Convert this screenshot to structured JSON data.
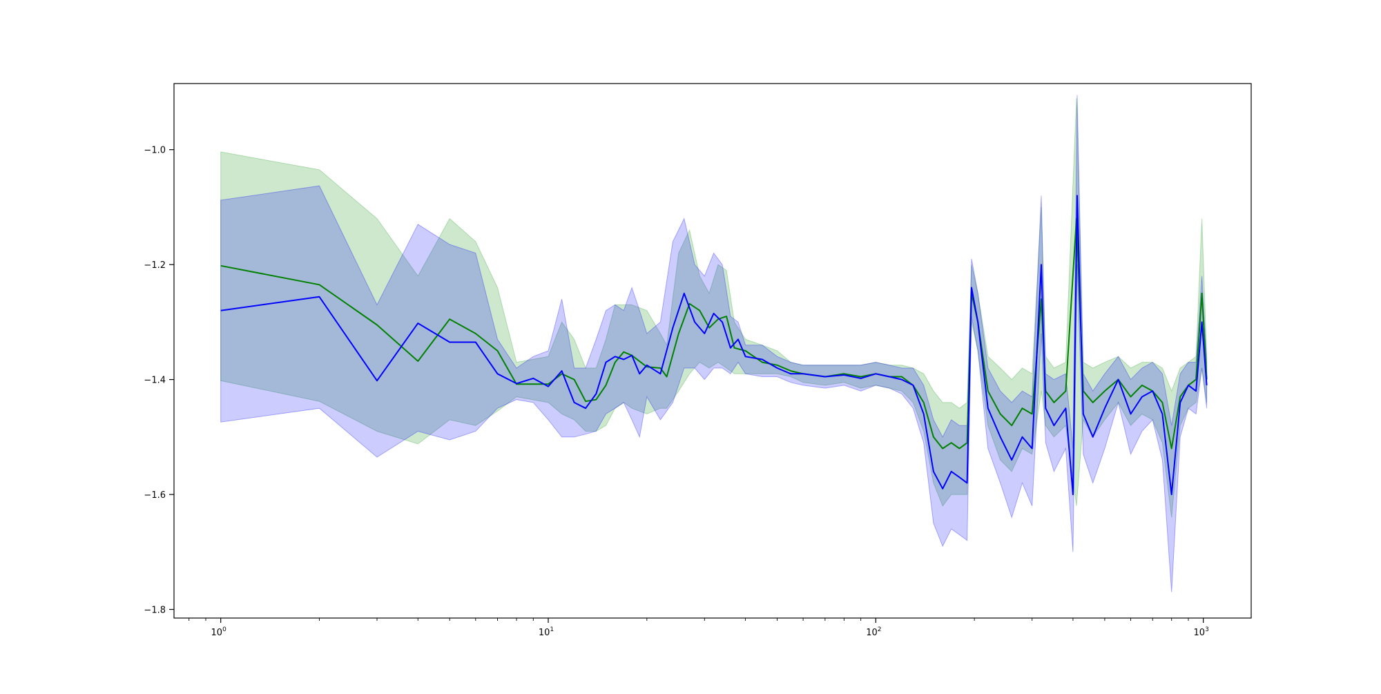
{
  "chart_data": {
    "type": "line",
    "title": "",
    "xlabel": "",
    "ylabel": "",
    "x_scale": "log",
    "xlim": [
      0.72,
      1400
    ],
    "ylim": [
      -1.815,
      -0.885
    ],
    "grid": false,
    "legend": "none",
    "x_ticks": [
      {
        "value": 1,
        "base": "10",
        "exp": "0"
      },
      {
        "value": 10,
        "base": "10",
        "exp": "1"
      },
      {
        "value": 100,
        "base": "10",
        "exp": "2"
      },
      {
        "value": 1000,
        "base": "10",
        "exp": "3"
      }
    ],
    "y_ticks": [
      {
        "value": -1.0,
        "label": "−1.0"
      },
      {
        "value": -1.2,
        "label": "−1.2"
      },
      {
        "value": -1.4,
        "label": "−1.4"
      },
      {
        "value": -1.6,
        "label": "−1.6"
      },
      {
        "value": -1.8,
        "label": "−1.8"
      }
    ],
    "series": [
      {
        "color": "#008000",
        "band_color": "#2ca02c",
        "points": [
          [
            1,
            -1.202,
            -1.004,
            -1.402
          ],
          [
            2,
            -1.235,
            -1.035,
            -1.438
          ],
          [
            3,
            -1.305,
            -1.12,
            -1.49
          ],
          [
            4,
            -1.368,
            -1.22,
            -1.512
          ],
          [
            5,
            -1.295,
            -1.12,
            -1.47
          ],
          [
            6,
            -1.32,
            -1.16,
            -1.48
          ],
          [
            7,
            -1.35,
            -1.24,
            -1.455
          ],
          [
            8,
            -1.408,
            -1.37,
            -1.43
          ],
          [
            10,
            -1.408,
            -1.36,
            -1.44
          ],
          [
            11,
            -1.39,
            -1.3,
            -1.46
          ],
          [
            12,
            -1.4,
            -1.33,
            -1.47
          ],
          [
            13,
            -1.438,
            -1.38,
            -1.49
          ],
          [
            14,
            -1.435,
            -1.38,
            -1.49
          ],
          [
            15,
            -1.41,
            -1.33,
            -1.48
          ],
          [
            16,
            -1.37,
            -1.27,
            -1.45
          ],
          [
            17,
            -1.352,
            -1.27,
            -1.44
          ],
          [
            18,
            -1.358,
            -1.27,
            -1.45
          ],
          [
            20,
            -1.378,
            -1.28,
            -1.46
          ],
          [
            22,
            -1.38,
            -1.32,
            -1.45
          ],
          [
            23,
            -1.395,
            -1.34,
            -1.45
          ],
          [
            25,
            -1.32,
            -1.18,
            -1.42
          ],
          [
            27,
            -1.268,
            -1.14,
            -1.39
          ],
          [
            29,
            -1.28,
            -1.22,
            -1.37
          ],
          [
            31,
            -1.31,
            -1.25,
            -1.38
          ],
          [
            33,
            -1.295,
            -1.2,
            -1.37
          ],
          [
            35,
            -1.29,
            -1.21,
            -1.38
          ],
          [
            37,
            -1.345,
            -1.3,
            -1.39
          ],
          [
            40,
            -1.35,
            -1.33,
            -1.39
          ],
          [
            45,
            -1.37,
            -1.34,
            -1.39
          ],
          [
            50,
            -1.375,
            -1.35,
            -1.39
          ],
          [
            55,
            -1.385,
            -1.37,
            -1.395
          ],
          [
            60,
            -1.39,
            -1.375,
            -1.405
          ],
          [
            70,
            -1.395,
            -1.375,
            -1.41
          ],
          [
            80,
            -1.39,
            -1.375,
            -1.405
          ],
          [
            90,
            -1.395,
            -1.375,
            -1.415
          ],
          [
            100,
            -1.39,
            -1.37,
            -1.41
          ],
          [
            110,
            -1.395,
            -1.375,
            -1.415
          ],
          [
            120,
            -1.395,
            -1.375,
            -1.42
          ],
          [
            130,
            -1.41,
            -1.38,
            -1.44
          ],
          [
            140,
            -1.44,
            -1.39,
            -1.49
          ],
          [
            150,
            -1.5,
            -1.42,
            -1.58
          ],
          [
            160,
            -1.52,
            -1.44,
            -1.62
          ],
          [
            170,
            -1.51,
            -1.44,
            -1.6
          ],
          [
            180,
            -1.52,
            -1.45,
            -1.6
          ],
          [
            190,
            -1.51,
            -1.44,
            -1.6
          ],
          [
            196,
            -1.25,
            -1.2,
            -1.3
          ],
          [
            205,
            -1.3,
            -1.25,
            -1.35
          ],
          [
            220,
            -1.42,
            -1.36,
            -1.48
          ],
          [
            240,
            -1.46,
            -1.38,
            -1.54
          ],
          [
            260,
            -1.48,
            -1.4,
            -1.56
          ],
          [
            280,
            -1.45,
            -1.38,
            -1.52
          ],
          [
            300,
            -1.46,
            -1.39,
            -1.53
          ],
          [
            320,
            -1.26,
            -1.1,
            -1.42
          ],
          [
            330,
            -1.42,
            -1.36,
            -1.48
          ],
          [
            350,
            -1.44,
            -1.38,
            -1.5
          ],
          [
            380,
            -1.42,
            -1.37,
            -1.48
          ],
          [
            410,
            -1.12,
            -0.91,
            -1.62
          ],
          [
            430,
            -1.42,
            -1.37,
            -1.47
          ],
          [
            460,
            -1.44,
            -1.38,
            -1.5
          ],
          [
            500,
            -1.42,
            -1.37,
            -1.47
          ],
          [
            550,
            -1.4,
            -1.36,
            -1.44
          ],
          [
            600,
            -1.43,
            -1.38,
            -1.48
          ],
          [
            650,
            -1.41,
            -1.37,
            -1.46
          ],
          [
            700,
            -1.42,
            -1.37,
            -1.47
          ],
          [
            750,
            -1.44,
            -1.38,
            -1.51
          ],
          [
            800,
            -1.52,
            -1.42,
            -1.64
          ],
          [
            850,
            -1.43,
            -1.38,
            -1.48
          ],
          [
            900,
            -1.41,
            -1.37,
            -1.45
          ],
          [
            950,
            -1.4,
            -1.36,
            -1.44
          ],
          [
            990,
            -1.25,
            -1.12,
            -1.38
          ],
          [
            1024,
            -1.4,
            -1.36,
            -1.44
          ]
        ]
      },
      {
        "color": "#0000ff",
        "band_color": "#0000ff",
        "points": [
          [
            1,
            -1.28,
            -1.088,
            -1.474
          ],
          [
            2,
            -1.256,
            -1.063,
            -1.45
          ],
          [
            3,
            -1.402,
            -1.27,
            -1.535
          ],
          [
            4,
            -1.302,
            -1.13,
            -1.49
          ],
          [
            5,
            -1.335,
            -1.165,
            -1.505
          ],
          [
            6,
            -1.335,
            -1.18,
            -1.49
          ],
          [
            7,
            -1.39,
            -1.33,
            -1.45
          ],
          [
            8,
            -1.407,
            -1.38,
            -1.435
          ],
          [
            9,
            -1.398,
            -1.36,
            -1.44
          ],
          [
            10,
            -1.412,
            -1.35,
            -1.47
          ],
          [
            11,
            -1.385,
            -1.26,
            -1.5
          ],
          [
            12,
            -1.44,
            -1.38,
            -1.5
          ],
          [
            13,
            -1.45,
            -1.38,
            -1.495
          ],
          [
            14,
            -1.425,
            -1.33,
            -1.49
          ],
          [
            15,
            -1.37,
            -1.28,
            -1.46
          ],
          [
            16,
            -1.36,
            -1.27,
            -1.45
          ],
          [
            17,
            -1.365,
            -1.28,
            -1.44
          ],
          [
            18,
            -1.358,
            -1.24,
            -1.47
          ],
          [
            19,
            -1.39,
            -1.28,
            -1.5
          ],
          [
            20,
            -1.375,
            -1.32,
            -1.43
          ],
          [
            22,
            -1.39,
            -1.3,
            -1.47
          ],
          [
            24,
            -1.31,
            -1.16,
            -1.44
          ],
          [
            26,
            -1.25,
            -1.12,
            -1.38
          ],
          [
            28,
            -1.3,
            -1.2,
            -1.38
          ],
          [
            30,
            -1.32,
            -1.22,
            -1.4
          ],
          [
            32,
            -1.285,
            -1.18,
            -1.38
          ],
          [
            34,
            -1.3,
            -1.2,
            -1.38
          ],
          [
            36,
            -1.345,
            -1.29,
            -1.39
          ],
          [
            38,
            -1.33,
            -1.3,
            -1.37
          ],
          [
            40,
            -1.36,
            -1.34,
            -1.39
          ],
          [
            45,
            -1.365,
            -1.34,
            -1.395
          ],
          [
            50,
            -1.38,
            -1.36,
            -1.395
          ],
          [
            55,
            -1.39,
            -1.37,
            -1.405
          ],
          [
            60,
            -1.39,
            -1.375,
            -1.41
          ],
          [
            70,
            -1.395,
            -1.375,
            -1.415
          ],
          [
            80,
            -1.392,
            -1.375,
            -1.41
          ],
          [
            90,
            -1.398,
            -1.375,
            -1.42
          ],
          [
            100,
            -1.39,
            -1.37,
            -1.41
          ],
          [
            110,
            -1.395,
            -1.375,
            -1.415
          ],
          [
            120,
            -1.4,
            -1.38,
            -1.425
          ],
          [
            130,
            -1.41,
            -1.38,
            -1.45
          ],
          [
            140,
            -1.46,
            -1.41,
            -1.51
          ],
          [
            150,
            -1.56,
            -1.47,
            -1.65
          ],
          [
            160,
            -1.59,
            -1.5,
            -1.69
          ],
          [
            170,
            -1.56,
            -1.47,
            -1.66
          ],
          [
            180,
            -1.57,
            -1.48,
            -1.67
          ],
          [
            190,
            -1.58,
            -1.48,
            -1.68
          ],
          [
            196,
            -1.24,
            -1.19,
            -1.29
          ],
          [
            205,
            -1.3,
            -1.25,
            -1.35
          ],
          [
            220,
            -1.45,
            -1.38,
            -1.52
          ],
          [
            240,
            -1.5,
            -1.42,
            -1.58
          ],
          [
            260,
            -1.54,
            -1.44,
            -1.64
          ],
          [
            280,
            -1.5,
            -1.42,
            -1.58
          ],
          [
            300,
            -1.52,
            -1.43,
            -1.62
          ],
          [
            320,
            -1.2,
            -1.08,
            -1.32
          ],
          [
            330,
            -1.45,
            -1.39,
            -1.51
          ],
          [
            350,
            -1.48,
            -1.4,
            -1.56
          ],
          [
            380,
            -1.45,
            -1.39,
            -1.52
          ],
          [
            400,
            -1.6,
            -1.52,
            -1.7
          ],
          [
            412,
            -1.08,
            -0.905,
            -1.2
          ],
          [
            430,
            -1.46,
            -1.39,
            -1.53
          ],
          [
            460,
            -1.5,
            -1.42,
            -1.58
          ],
          [
            500,
            -1.45,
            -1.39,
            -1.52
          ],
          [
            550,
            -1.4,
            -1.36,
            -1.44
          ],
          [
            600,
            -1.46,
            -1.4,
            -1.53
          ],
          [
            650,
            -1.43,
            -1.38,
            -1.49
          ],
          [
            700,
            -1.42,
            -1.37,
            -1.47
          ],
          [
            750,
            -1.46,
            -1.39,
            -1.54
          ],
          [
            800,
            -1.6,
            -1.48,
            -1.77
          ],
          [
            850,
            -1.44,
            -1.39,
            -1.5
          ],
          [
            900,
            -1.41,
            -1.37,
            -1.45
          ],
          [
            950,
            -1.42,
            -1.37,
            -1.46
          ],
          [
            990,
            -1.3,
            -1.22,
            -1.38
          ],
          [
            1024,
            -1.41,
            -1.37,
            -1.45
          ]
        ]
      }
    ]
  }
}
